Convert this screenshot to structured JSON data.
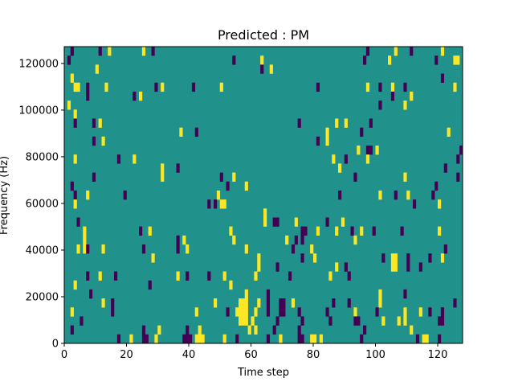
{
  "chart_data": {
    "type": "heatmap",
    "title": "Predicted : PM",
    "xlabel": "Time step",
    "ylabel": "Frequency (Hz)",
    "xlim": [
      0,
      128
    ],
    "ylim": [
      0,
      127200
    ],
    "n_cols": 128,
    "n_rows": 33,
    "xticks": [
      0,
      20,
      40,
      60,
      80,
      100,
      120
    ],
    "xtick_labels": [
      "0",
      "20",
      "40",
      "60",
      "80",
      "100",
      "120"
    ],
    "yticks": [
      0,
      20000,
      40000,
      60000,
      80000,
      100000,
      120000
    ],
    "ytick_labels": [
      "0",
      "20000",
      "40000",
      "60000",
      "80000",
      "100000",
      "120000"
    ],
    "colors": {
      "background": "#21918c",
      "high": "#fde725",
      "low": "#440154"
    },
    "value_legend": {
      "0": "background",
      "1": "high",
      "-1": "low"
    },
    "cells_format": "[time_col, freq_row, value, width_cols, height_rows]",
    "cells": [
      [
        2,
        32,
        -1,
        1,
        1
      ],
      [
        11,
        32,
        -1,
        1,
        1
      ],
      [
        14,
        32,
        1,
        1,
        1
      ],
      [
        25,
        32,
        1,
        1,
        1
      ],
      [
        28,
        32,
        -1,
        1,
        1
      ],
      [
        97,
        32,
        -1,
        1,
        1
      ],
      [
        106,
        32,
        1,
        1,
        1
      ],
      [
        111,
        32,
        -1,
        1,
        1
      ],
      [
        121,
        32,
        1,
        1,
        1
      ],
      [
        1,
        31,
        -1,
        1,
        1
      ],
      [
        54,
        31,
        -1,
        1,
        1
      ],
      [
        63,
        31,
        1,
        1,
        1
      ],
      [
        96,
        31,
        -1,
        1,
        1
      ],
      [
        104,
        31,
        1,
        1,
        1
      ],
      [
        119,
        31,
        -1,
        1,
        1
      ],
      [
        125,
        31,
        1,
        2,
        1
      ],
      [
        10,
        30,
        1,
        1,
        1
      ],
      [
        63,
        30,
        -1,
        1,
        1
      ],
      [
        66,
        30,
        1,
        1,
        1
      ],
      [
        2,
        29,
        1,
        1,
        1
      ],
      [
        121,
        29,
        -1,
        1,
        1
      ],
      [
        3,
        28,
        1,
        2,
        1
      ],
      [
        7,
        27,
        -1,
        1,
        2
      ],
      [
        13,
        28,
        1,
        1,
        1
      ],
      [
        29,
        28,
        -1,
        1,
        1
      ],
      [
        31,
        28,
        1,
        1,
        1
      ],
      [
        41,
        28,
        -1,
        1,
        1
      ],
      [
        50,
        28,
        1,
        1,
        1
      ],
      [
        81,
        28,
        -1,
        1,
        1
      ],
      [
        97,
        28,
        1,
        1,
        1
      ],
      [
        101,
        28,
        -1,
        1,
        1
      ],
      [
        105,
        28,
        1,
        1,
        1
      ],
      [
        109,
        28,
        -1,
        1,
        1
      ],
      [
        125,
        28,
        1,
        1,
        1
      ],
      [
        22,
        27,
        -1,
        1,
        1
      ],
      [
        24,
        27,
        1,
        1,
        1
      ],
      [
        105,
        27,
        -1,
        1,
        1
      ],
      [
        111,
        27,
        1,
        1,
        1
      ],
      [
        1,
        26,
        1,
        1,
        1
      ],
      [
        101,
        26,
        -1,
        1,
        1
      ],
      [
        109,
        26,
        1,
        1,
        1
      ],
      [
        3,
        25,
        1,
        1,
        1
      ],
      [
        3,
        24,
        -1,
        1,
        1
      ],
      [
        9,
        24,
        -1,
        1,
        1
      ],
      [
        11,
        24,
        1,
        1,
        1
      ],
      [
        75,
        24,
        -1,
        1,
        1
      ],
      [
        87,
        24,
        1,
        1,
        1
      ],
      [
        90,
        24,
        1,
        1,
        1
      ],
      [
        98,
        24,
        -1,
        1,
        1
      ],
      [
        37,
        23,
        1,
        1,
        1
      ],
      [
        42,
        23,
        -1,
        1,
        1
      ],
      [
        84,
        22,
        1,
        1,
        2
      ],
      [
        95,
        23,
        -1,
        1,
        1
      ],
      [
        123,
        23,
        1,
        1,
        1
      ],
      [
        9,
        22,
        -1,
        1,
        1
      ],
      [
        12,
        22,
        1,
        1,
        1
      ],
      [
        81,
        22,
        -1,
        1,
        1
      ],
      [
        94,
        21,
        1,
        1,
        1
      ],
      [
        97,
        21,
        -1,
        2,
        1
      ],
      [
        100,
        21,
        1,
        1,
        1
      ],
      [
        127,
        21,
        -1,
        1,
        1
      ],
      [
        3,
        20,
        1,
        1,
        1
      ],
      [
        17,
        20,
        -1,
        1,
        1
      ],
      [
        22,
        20,
        1,
        1,
        1
      ],
      [
        86,
        20,
        1,
        1,
        1
      ],
      [
        90,
        20,
        -1,
        1,
        1
      ],
      [
        97,
        20,
        1,
        1,
        1
      ],
      [
        126,
        20,
        -1,
        1,
        1
      ],
      [
        31,
        18,
        1,
        1,
        2
      ],
      [
        36,
        19,
        -1,
        1,
        1
      ],
      [
        88,
        19,
        1,
        1,
        1
      ],
      [
        122,
        19,
        -1,
        1,
        1
      ],
      [
        9,
        18,
        -1,
        1,
        1
      ],
      [
        50,
        18,
        -1,
        1,
        1
      ],
      [
        54,
        18,
        1,
        1,
        1
      ],
      [
        93,
        18,
        -1,
        1,
        1
      ],
      [
        109,
        18,
        1,
        1,
        1
      ],
      [
        126,
        18,
        -1,
        1,
        1
      ],
      [
        2,
        17,
        -1,
        1,
        1
      ],
      [
        52,
        17,
        -1,
        1,
        1
      ],
      [
        58,
        17,
        1,
        1,
        1
      ],
      [
        119,
        17,
        -1,
        1,
        1
      ],
      [
        3,
        16,
        -1,
        1,
        1
      ],
      [
        7,
        16,
        1,
        1,
        1
      ],
      [
        19,
        16,
        -1,
        1,
        1
      ],
      [
        49,
        16,
        1,
        1,
        1
      ],
      [
        88,
        16,
        -1,
        1,
        1
      ],
      [
        101,
        16,
        1,
        1,
        1
      ],
      [
        106,
        16,
        -1,
        1,
        1
      ],
      [
        110,
        16,
        1,
        1,
        1
      ],
      [
        118,
        16,
        -1,
        1,
        1
      ],
      [
        3,
        15,
        1,
        1,
        1
      ],
      [
        46,
        15,
        -1,
        1,
        1
      ],
      [
        48,
        15,
        -1,
        1,
        1
      ],
      [
        50,
        15,
        1,
        2,
        1
      ],
      [
        112,
        15,
        -1,
        1,
        1
      ],
      [
        120,
        15,
        1,
        1,
        1
      ],
      [
        64,
        14,
        1,
        1,
        1
      ],
      [
        4,
        13,
        -1,
        1,
        1
      ],
      [
        64,
        13,
        1,
        1,
        1
      ],
      [
        67,
        13,
        -1,
        2,
        1
      ],
      [
        74,
        13,
        1,
        1,
        1
      ],
      [
        84,
        13,
        -1,
        1,
        1
      ],
      [
        89,
        13,
        1,
        1,
        1
      ],
      [
        6,
        10,
        1,
        1,
        3
      ],
      [
        24,
        12,
        -1,
        1,
        1
      ],
      [
        27,
        12,
        1,
        1,
        1
      ],
      [
        53,
        12,
        1,
        1,
        1
      ],
      [
        76,
        12,
        -1,
        2,
        1
      ],
      [
        81,
        12,
        1,
        1,
        1
      ],
      [
        87,
        12,
        1,
        1,
        1
      ],
      [
        92,
        12,
        -1,
        1,
        1
      ],
      [
        95,
        12,
        1,
        1,
        1
      ],
      [
        99,
        12,
        -1,
        1,
        1
      ],
      [
        108,
        12,
        -1,
        1,
        1
      ],
      [
        120,
        12,
        1,
        1,
        1
      ],
      [
        36,
        10,
        -1,
        1,
        2
      ],
      [
        38,
        11,
        1,
        1,
        1
      ],
      [
        54,
        11,
        1,
        1,
        1
      ],
      [
        71,
        11,
        1,
        1,
        1
      ],
      [
        74,
        11,
        -1,
        1,
        1
      ],
      [
        76,
        11,
        -1,
        1,
        1
      ],
      [
        93,
        11,
        1,
        1,
        1
      ],
      [
        4,
        10,
        1,
        1,
        1
      ],
      [
        7,
        10,
        -1,
        1,
        1
      ],
      [
        12,
        10,
        1,
        1,
        1
      ],
      [
        25,
        10,
        -1,
        1,
        1
      ],
      [
        39,
        10,
        1,
        1,
        1
      ],
      [
        58,
        10,
        1,
        1,
        1
      ],
      [
        73,
        10,
        -1,
        1,
        1
      ],
      [
        79,
        10,
        1,
        1,
        1
      ],
      [
        122,
        10,
        -1,
        1,
        1
      ],
      [
        28,
        9,
        1,
        1,
        1
      ],
      [
        76,
        9,
        -1,
        1,
        1
      ],
      [
        80,
        9,
        1,
        1,
        1
      ],
      [
        102,
        9,
        -1,
        1,
        1
      ],
      [
        105,
        8,
        1,
        2,
        2
      ],
      [
        110,
        8,
        -1,
        1,
        2
      ],
      [
        117,
        9,
        -1,
        1,
        1
      ],
      [
        121,
        9,
        1,
        1,
        1
      ],
      [
        62,
        8,
        1,
        1,
        2
      ],
      [
        68,
        8,
        -1,
        1,
        1
      ],
      [
        87,
        8,
        1,
        1,
        1
      ],
      [
        90,
        8,
        -1,
        1,
        1
      ],
      [
        114,
        8,
        -1,
        1,
        1
      ],
      [
        7,
        7,
        -1,
        1,
        1
      ],
      [
        11,
        7,
        1,
        1,
        1
      ],
      [
        16,
        7,
        -1,
        1,
        1
      ],
      [
        36,
        7,
        1,
        1,
        1
      ],
      [
        39,
        7,
        -1,
        1,
        1
      ],
      [
        46,
        7,
        -1,
        1,
        1
      ],
      [
        51,
        7,
        1,
        1,
        1
      ],
      [
        61,
        7,
        1,
        1,
        1
      ],
      [
        72,
        7,
        -1,
        1,
        1
      ],
      [
        85,
        7,
        1,
        1,
        1
      ],
      [
        91,
        7,
        -1,
        1,
        1
      ],
      [
        3,
        6,
        1,
        1,
        1
      ],
      [
        27,
        6,
        -1,
        1,
        1
      ],
      [
        53,
        6,
        1,
        1,
        1
      ],
      [
        8,
        5,
        -1,
        1,
        1
      ],
      [
        58,
        5,
        1,
        1,
        1
      ],
      [
        65,
        3,
        -1,
        1,
        3
      ],
      [
        101,
        4,
        1,
        1,
        2
      ],
      [
        109,
        5,
        -1,
        1,
        1
      ],
      [
        12,
        4,
        1,
        1,
        1
      ],
      [
        15,
        3,
        -1,
        1,
        2
      ],
      [
        48,
        4,
        1,
        1,
        1
      ],
      [
        56,
        2,
        1,
        3,
        3
      ],
      [
        62,
        4,
        1,
        1,
        1
      ],
      [
        69,
        3,
        -1,
        2,
        2
      ],
      [
        73,
        4,
        1,
        1,
        1
      ],
      [
        86,
        4,
        -1,
        1,
        1
      ],
      [
        91,
        4,
        -1,
        1,
        1
      ],
      [
        125,
        4,
        -1,
        1,
        1
      ],
      [
        2,
        3,
        1,
        1,
        1
      ],
      [
        42,
        3,
        1,
        1,
        1
      ],
      [
        52,
        3,
        -1,
        1,
        1
      ],
      [
        55,
        3,
        1,
        1,
        1
      ],
      [
        61,
        3,
        1,
        1,
        1
      ],
      [
        75,
        3,
        -1,
        1,
        1
      ],
      [
        84,
        3,
        -1,
        1,
        1
      ],
      [
        93,
        3,
        1,
        1,
        1
      ],
      [
        100,
        3,
        -1,
        1,
        1
      ],
      [
        109,
        2,
        1,
        1,
        2
      ],
      [
        114,
        3,
        1,
        1,
        1
      ],
      [
        117,
        3,
        -1,
        1,
        1
      ],
      [
        121,
        3,
        -1,
        1,
        1
      ],
      [
        5,
        2,
        -1,
        1,
        1
      ],
      [
        60,
        2,
        1,
        1,
        1
      ],
      [
        68,
        2,
        -1,
        1,
        1
      ],
      [
        76,
        2,
        -1,
        1,
        1
      ],
      [
        85,
        2,
        -1,
        1,
        1
      ],
      [
        93,
        2,
        -1,
        2,
        1
      ],
      [
        102,
        2,
        1,
        1,
        1
      ],
      [
        107,
        2,
        1,
        1,
        1
      ],
      [
        120,
        2,
        -1,
        2,
        1
      ],
      [
        2,
        1,
        -1,
        1,
        1
      ],
      [
        25,
        1,
        -1,
        1,
        1
      ],
      [
        30,
        1,
        1,
        1,
        1
      ],
      [
        39,
        1,
        -1,
        1,
        1
      ],
      [
        43,
        1,
        1,
        1,
        1
      ],
      [
        59,
        1,
        1,
        1,
        1
      ],
      [
        61,
        1,
        1,
        1,
        1
      ],
      [
        67,
        1,
        -1,
        1,
        1
      ],
      [
        75,
        1,
        -1,
        1,
        1
      ],
      [
        96,
        1,
        -1,
        1,
        1
      ],
      [
        111,
        1,
        1,
        1,
        1
      ],
      [
        17,
        0,
        -1,
        1,
        1
      ],
      [
        21,
        0,
        1,
        1,
        1
      ],
      [
        25,
        0,
        -1,
        2,
        1
      ],
      [
        29,
        0,
        1,
        1,
        1
      ],
      [
        38,
        0,
        -1,
        3,
        1
      ],
      [
        42,
        0,
        1,
        3,
        1
      ],
      [
        51,
        0,
        1,
        1,
        1
      ],
      [
        55,
        0,
        -1,
        1,
        1
      ],
      [
        65,
        0,
        -1,
        1,
        1
      ],
      [
        69,
        0,
        1,
        1,
        1
      ],
      [
        75,
        0,
        -1,
        2,
        1
      ],
      [
        79,
        0,
        1,
        2,
        1
      ],
      [
        82,
        0,
        1,
        1,
        1
      ],
      [
        95,
        0,
        -1,
        1,
        1
      ],
      [
        113,
        0,
        -1,
        1,
        1
      ],
      [
        115,
        0,
        1,
        2,
        1
      ],
      [
        120,
        0,
        -1,
        1,
        1
      ]
    ]
  }
}
